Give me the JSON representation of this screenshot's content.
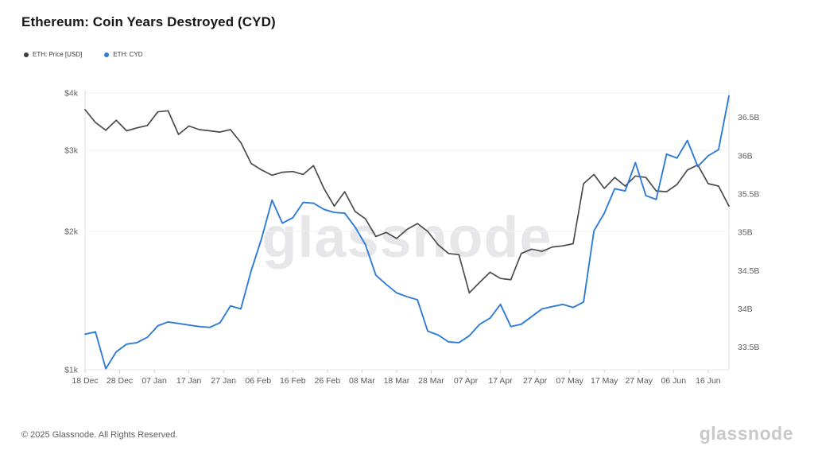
{
  "header": {
    "title": "Ethereum: Coin Years Destroyed (CYD)"
  },
  "legend": [
    {
      "label": "ETH: Price [USD]",
      "color": "#3d3d3d"
    },
    {
      "label": "ETH: CYD",
      "color": "#2e7cd6"
    }
  ],
  "watermark": "glassnode",
  "footer": {
    "copyright": "© 2025 Glassnode. All Rights Reserved.",
    "brand": "glassnode"
  },
  "chart_data": {
    "type": "line",
    "title": "Ethereum: Coin Years Destroyed (CYD)",
    "grid": "horizontal-faint",
    "legend_position": "top-left",
    "x_ticks": [
      "18 Dec",
      "28 Dec",
      "07 Jan",
      "17 Jan",
      "27 Jan",
      "06 Feb",
      "16 Feb",
      "26 Feb",
      "08 Mar",
      "18 Mar",
      "28 Mar",
      "07 Apr",
      "17 Apr",
      "27 Apr",
      "07 May",
      "17 May",
      "27 May",
      "06 Jun",
      "16 Jun"
    ],
    "x_tick_interval_days": 10,
    "x_total_days": 186,
    "left_axis": {
      "label": "ETH price, USD",
      "scale": "log",
      "ticks": [
        "$4k",
        "$3k",
        "$2k",
        "$1k"
      ],
      "tick_values": [
        4000,
        3000,
        2000,
        1000
      ],
      "range": [
        1000,
        4000
      ]
    },
    "right_axis": {
      "label": "Coin Years Destroyed",
      "scale": "linear",
      "ticks": [
        "36.5B",
        "36B",
        "35.5B",
        "35B",
        "34.5B",
        "34B",
        "33.5B"
      ],
      "tick_values": [
        36.5,
        36.0,
        35.5,
        35.0,
        34.5,
        34.0,
        33.5
      ],
      "range": [
        33.2,
        36.82
      ],
      "unit": "B"
    },
    "x": [
      "18 Dec",
      "21 Dec",
      "24 Dec",
      "27 Dec",
      "30 Dec",
      "02 Jan",
      "05 Jan",
      "08 Jan",
      "11 Jan",
      "14 Jan",
      "17 Jan",
      "20 Jan",
      "23 Jan",
      "26 Jan",
      "29 Jan",
      "01 Feb",
      "04 Feb",
      "07 Feb",
      "10 Feb",
      "13 Feb",
      "16 Feb",
      "19 Feb",
      "22 Feb",
      "25 Feb",
      "28 Feb",
      "03 Mar",
      "06 Mar",
      "09 Mar",
      "12 Mar",
      "15 Mar",
      "18 Mar",
      "21 Mar",
      "24 Mar",
      "27 Mar",
      "30 Mar",
      "02 Apr",
      "05 Apr",
      "08 Apr",
      "11 Apr",
      "14 Apr",
      "17 Apr",
      "20 Apr",
      "23 Apr",
      "26 Apr",
      "29 Apr",
      "02 May",
      "05 May",
      "08 May",
      "11 May",
      "14 May",
      "17 May",
      "20 May",
      "23 May",
      "26 May",
      "29 May",
      "01 Jun",
      "04 Jun",
      "07 Jun",
      "10 Jun",
      "13 Jun",
      "16 Jun",
      "19 Jun",
      "22 Jun"
    ],
    "series": [
      {
        "name": "ETH: Price [USD]",
        "color": "#4a4a4a",
        "axis": "left",
        "unit": "USD",
        "values": [
          3680,
          3450,
          3320,
          3490,
          3310,
          3360,
          3400,
          3640,
          3660,
          3250,
          3390,
          3330,
          3310,
          3290,
          3330,
          3120,
          2810,
          2720,
          2650,
          2690,
          2700,
          2660,
          2780,
          2480,
          2270,
          2440,
          2210,
          2130,
          1950,
          1990,
          1930,
          2020,
          2080,
          2000,
          1870,
          1790,
          1780,
          1470,
          1550,
          1630,
          1580,
          1570,
          1790,
          1830,
          1810,
          1850,
          1860,
          1880,
          2540,
          2660,
          2480,
          2620,
          2510,
          2640,
          2620,
          2450,
          2440,
          2530,
          2720,
          2790,
          2540,
          2510,
          2270
        ]
      },
      {
        "name": "ETH: CYD",
        "color": "#2e7cd6",
        "axis": "right",
        "unit": "B coin-years",
        "values": [
          33.67,
          33.7,
          33.22,
          33.44,
          33.54,
          33.56,
          33.63,
          33.78,
          33.83,
          33.81,
          33.79,
          33.77,
          33.76,
          33.82,
          34.04,
          34.0,
          34.5,
          34.92,
          35.42,
          35.12,
          35.19,
          35.39,
          35.38,
          35.3,
          35.26,
          35.25,
          35.07,
          34.84,
          34.44,
          34.32,
          34.21,
          34.16,
          34.12,
          33.71,
          33.66,
          33.57,
          33.56,
          33.65,
          33.8,
          33.88,
          34.06,
          33.77,
          33.8,
          33.9,
          34.0,
          34.03,
          34.06,
          34.02,
          34.09,
          35.02,
          35.25,
          35.57,
          35.54,
          35.91,
          35.48,
          35.43,
          36.02,
          35.97,
          36.2,
          35.86,
          36.0,
          36.08,
          36.78
        ]
      }
    ]
  }
}
